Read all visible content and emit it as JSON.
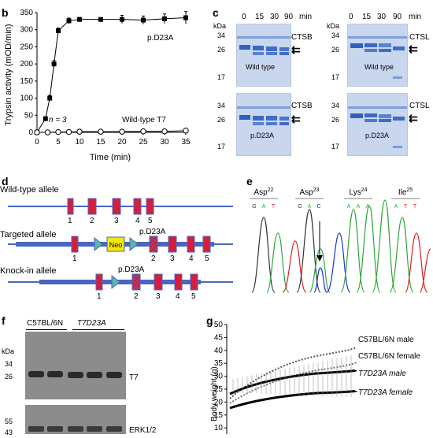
{
  "panels": {
    "b": "b",
    "c": "c",
    "d": "d",
    "e": "e",
    "f": "f",
    "g": "g"
  },
  "panel_b": {
    "ylabel": "Trypsin activity (mOD/min)",
    "xlabel": "Time (min)",
    "yticks": [
      "0",
      "50",
      "100",
      "150",
      "200",
      "250",
      "300",
      "350"
    ],
    "xticks": [
      "0",
      "5",
      "10",
      "15",
      "20",
      "25",
      "30",
      "35"
    ],
    "series1_label": "p.D23A",
    "series2_label": "Wild-type T7",
    "n_label": "n = 3"
  },
  "chart_data": {
    "type": "line",
    "xlabel": "Time (min)",
    "ylabel": "Trypsin activity (mOD/min)",
    "xlim": [
      0,
      35
    ],
    "ylim": [
      0,
      350
    ],
    "series": [
      {
        "name": "p.D23A",
        "x": [
          0,
          2,
          3,
          4,
          5,
          7.5,
          10,
          15,
          20,
          25,
          30,
          35
        ],
        "y": [
          0,
          40,
          100,
          200,
          297,
          326,
          330,
          330,
          330,
          328,
          332,
          335
        ],
        "err": [
          0,
          5,
          8,
          10,
          8,
          8,
          6,
          5,
          12,
          12,
          14,
          18
        ]
      },
      {
        "name": "Wild-type T7",
        "x": [
          0,
          2.5,
          5,
          7.5,
          10,
          15,
          20,
          25,
          30,
          35
        ],
        "y": [
          0,
          0,
          1,
          1,
          2,
          2,
          2,
          3,
          3,
          5
        ],
        "err": [
          0,
          0,
          0,
          0,
          0,
          0,
          0,
          0,
          0,
          0
        ]
      }
    ]
  },
  "panel_c": {
    "kda": "kDa",
    "time_header": [
      "0",
      "15",
      "30",
      "90",
      "min"
    ],
    "markers": [
      "34",
      "26",
      "17"
    ],
    "ctsb": "CTSB",
    "ctsl": "CTSL",
    "wild_type": "Wild type",
    "d23a": "p.D23A"
  },
  "panel_d": {
    "wt_allele": "Wild-type allele",
    "targeted_allele": "Targeted allele",
    "knockin_allele": "Knock-in allele",
    "neo": "Neo",
    "mutation": "p.D23A",
    "wt_exons": [
      "1",
      "2",
      "3",
      "4",
      "5"
    ],
    "targeted_exons": [
      "1",
      "2",
      "3",
      "4",
      "5"
    ],
    "knockin_exons": [
      "1",
      "2",
      "3",
      "4",
      "5"
    ]
  },
  "panel_e": {
    "residues": [
      {
        "aa": "Asp",
        "num": "22",
        "bases": [
          "G",
          "A",
          "T"
        ]
      },
      {
        "aa": "Asp",
        "num": "23",
        "bases": [
          "G",
          "A",
          "C"
        ]
      },
      {
        "aa": "Lys",
        "num": "24",
        "bases": [
          "A",
          "A",
          "A"
        ]
      },
      {
        "aa": "Ile",
        "num": "25",
        "bases": [
          "A",
          "T",
          "T"
        ]
      }
    ]
  },
  "panel_f": {
    "kda": "kDa",
    "strain1": "C57BL/6N",
    "strain2": "T7D23A",
    "markers_top": [
      "34",
      "26"
    ],
    "markers_bottom": [
      "55",
      "43"
    ],
    "t7": "T7",
    "erk": "ERK1/2"
  },
  "panel_g": {
    "ylabel": "Body weight (g)",
    "yticks": [
      "50",
      "45",
      "40",
      "35",
      "30",
      "25",
      "20",
      "15",
      "10"
    ],
    "legend": [
      "C57BL/6N male",
      "C57BL/6N female",
      "T7D23A male",
      "T7D23A female"
    ]
  }
}
